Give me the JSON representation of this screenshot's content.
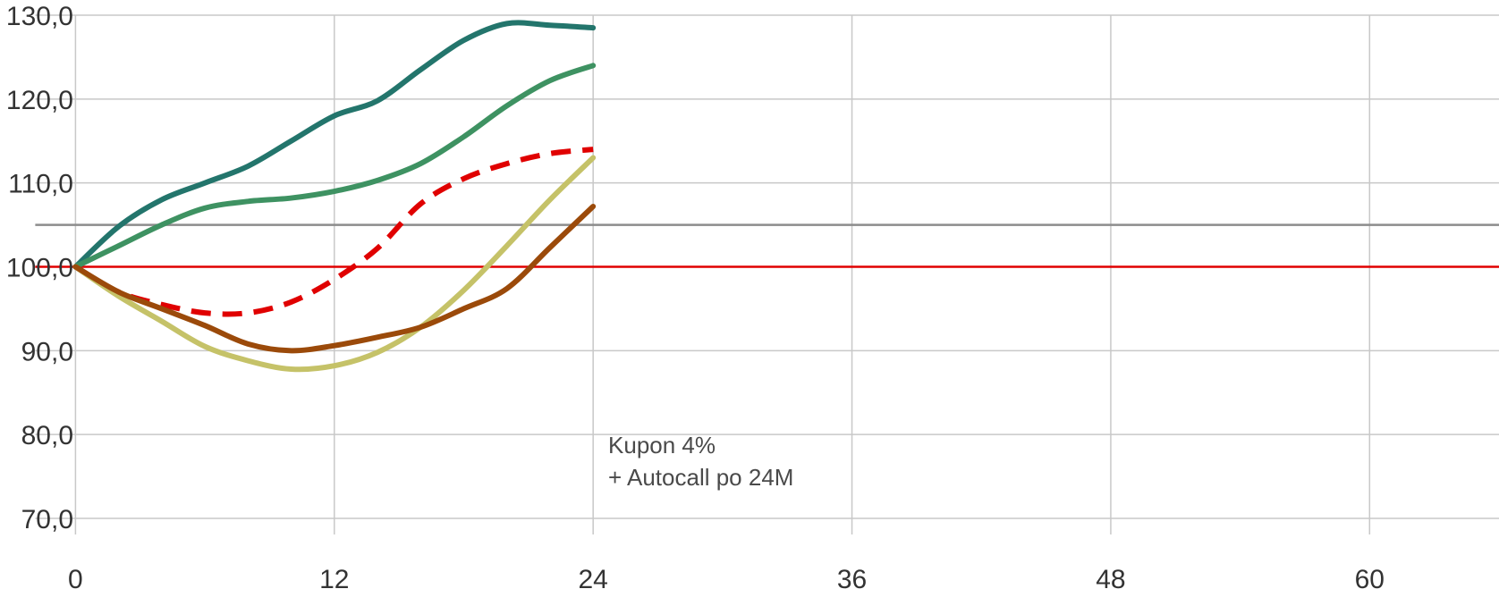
{
  "chart_data": {
    "type": "line",
    "title": "",
    "xlabel": "",
    "ylabel": "",
    "xlim": [
      -3.5,
      66
    ],
    "ylim": [
      70,
      130
    ],
    "x_ticks": [
      0,
      12,
      24,
      36,
      48,
      60
    ],
    "x_tick_labels": [
      "0",
      "12",
      "24",
      "36",
      "48",
      "60"
    ],
    "y_ticks": [
      70,
      80,
      90,
      100,
      110,
      120,
      130
    ],
    "y_tick_labels": [
      "70,0",
      "80,0",
      "90,0",
      "100,0",
      "110,0",
      "120,0",
      "130,0"
    ],
    "grid": true,
    "reference_lines": [
      {
        "y": 105,
        "color": "#8c8c8c"
      },
      {
        "y": 100,
        "color": "#e00000"
      }
    ],
    "series": [
      {
        "color": "#23756c",
        "dash": false,
        "x": [
          0,
          2,
          4,
          6,
          8,
          10,
          12,
          14,
          16,
          18,
          20,
          22,
          24
        ],
        "y": [
          100,
          104.8,
          108,
          110,
          112,
          115,
          118,
          119.8,
          123.5,
          127,
          129,
          128.8,
          128.5
        ]
      },
      {
        "color": "#3e9262",
        "dash": false,
        "x": [
          0,
          2,
          4,
          6,
          8,
          10,
          12,
          14,
          16,
          18,
          20,
          22,
          24
        ],
        "y": [
          100,
          102.5,
          105,
          107,
          107.8,
          108.2,
          109,
          110.3,
          112.3,
          115.5,
          119.2,
          122.2,
          124
        ]
      },
      {
        "color": "#e00000",
        "dash": true,
        "x": [
          0,
          2,
          4,
          6,
          8,
          10,
          12,
          14,
          16,
          18,
          20,
          22,
          24
        ],
        "y": [
          100,
          97,
          95.5,
          94.5,
          94.5,
          95.8,
          98.5,
          102.2,
          107.5,
          110.5,
          112.3,
          113.5,
          114
        ]
      },
      {
        "color": "#c5c268",
        "dash": false,
        "x": [
          0,
          2,
          4,
          6,
          8,
          10,
          12,
          14,
          16,
          18,
          20,
          22,
          24
        ],
        "y": [
          100,
          96.5,
          93.5,
          90.5,
          88.8,
          87.8,
          88.2,
          89.8,
          92.8,
          97.2,
          102.5,
          108,
          113
        ]
      },
      {
        "color": "#9b4a0a",
        "dash": false,
        "x": [
          0,
          2,
          4,
          6,
          8,
          10,
          12,
          14,
          16,
          18,
          20,
          22,
          24
        ],
        "y": [
          100,
          97,
          95,
          93,
          90.8,
          90,
          90.6,
          91.6,
          92.8,
          95,
          97.4,
          102.3,
          107.2
        ]
      }
    ],
    "annotations": [
      {
        "text_lines": [
          "Kupon 4%",
          "+ Autocall po 24M"
        ],
        "x": 24.7,
        "y": 77.8
      }
    ]
  }
}
